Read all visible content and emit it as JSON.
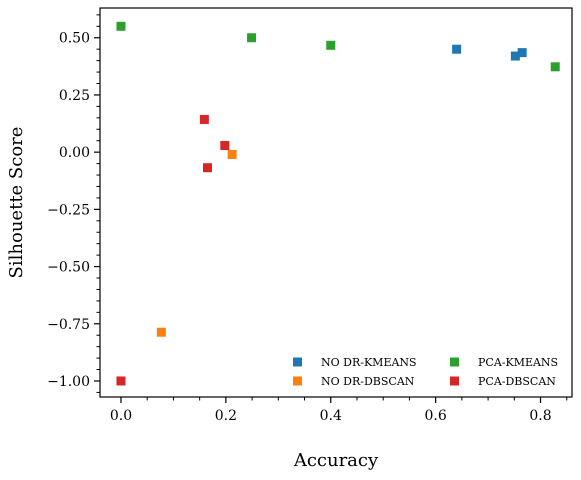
{
  "chart_data": {
    "type": "scatter",
    "xlabel": "Accuracy",
    "ylabel": "Silhouette Score",
    "xlim": [
      -0.04,
      0.86
    ],
    "ylim": [
      -1.07,
      0.63
    ],
    "x_ticks": [
      0.0,
      0.2,
      0.4,
      0.6,
      0.8
    ],
    "x_tick_labels": [
      "0.0",
      "0.2",
      "0.4",
      "0.6",
      "0.8"
    ],
    "y_ticks": [
      0.5,
      0.25,
      0.0,
      -0.25,
      -0.5,
      -0.75,
      -1.0
    ],
    "y_tick_labels": [
      "0.50",
      "0.25",
      "0.00",
      "−0.25",
      "−0.50",
      "−0.75",
      "−1.00"
    ],
    "grid": false,
    "legend_position": "lower-right",
    "series": [
      {
        "name": "NO DR-KMEANS",
        "color": "#1f77b4",
        "marker": "square",
        "points": [
          [
            0.64,
            0.45
          ],
          [
            0.752,
            0.42
          ],
          [
            0.765,
            0.435
          ]
        ]
      },
      {
        "name": "NO DR-DBSCAN",
        "color": "#ff7f0e",
        "marker": "square",
        "points": [
          [
            0.212,
            -0.01
          ],
          [
            0.077,
            -0.787
          ],
          [
            0.0,
            -1.0
          ]
        ]
      },
      {
        "name": "PCA-KMEANS",
        "color": "#2ca02c",
        "marker": "square",
        "points": [
          [
            0.0,
            0.55
          ],
          [
            0.249,
            0.5
          ],
          [
            0.4,
            0.467
          ],
          [
            0.828,
            0.373
          ]
        ]
      },
      {
        "name": "PCA-DBSCAN",
        "color": "#d62728",
        "marker": "square",
        "points": [
          [
            0.159,
            0.143
          ],
          [
            0.198,
            0.029
          ],
          [
            0.165,
            -0.068
          ],
          [
            0.0,
            -1.0
          ]
        ]
      }
    ]
  }
}
